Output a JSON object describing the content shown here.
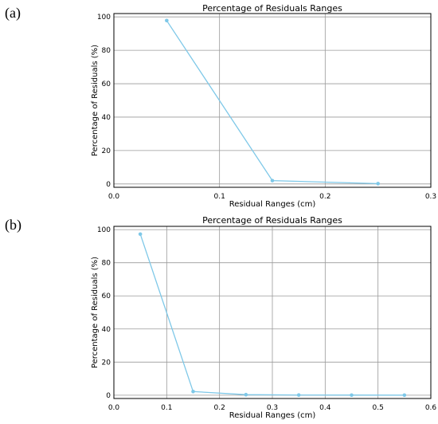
{
  "chart_data": [
    {
      "type": "line",
      "panel_label": "(a)",
      "title": "Percentage of Residuals Ranges",
      "xlabel": "Residual Ranges (cm)",
      "ylabel": "Percentage of Residuals (%)",
      "xlim": [
        0,
        0.3
      ],
      "ylim": [
        -2,
        102
      ],
      "xticks": [
        "0.0",
        "0.1",
        "0.2",
        "0.3"
      ],
      "yticks": [
        "0",
        "20",
        "40",
        "60",
        "80",
        "100"
      ],
      "grid": true,
      "color": "#7ec8e8",
      "series": [
        {
          "x": [
            0.05,
            0.15,
            0.25
          ],
          "y": [
            97.8,
            2.0,
            0.2
          ]
        }
      ]
    },
    {
      "type": "line",
      "panel_label": "(b)",
      "title": "Percentage of Residuals Ranges",
      "xlabel": "Residual Ranges (cm)",
      "ylabel": "Percentage of Residuals (%)",
      "xlim": [
        0,
        0.6
      ],
      "ylim": [
        -2,
        102
      ],
      "xticks": [
        "0.0",
        "0.1",
        "0.2",
        "0.3",
        "0.4",
        "0.5",
        "0.6"
      ],
      "yticks": [
        "0",
        "20",
        "40",
        "60",
        "80",
        "100"
      ],
      "grid": true,
      "color": "#7ec8e8",
      "series": [
        {
          "x": [
            0.05,
            0.15,
            0.25,
            0.35,
            0.45,
            0.55
          ],
          "y": [
            97.3,
            2.2,
            0.3,
            0.1,
            0.05,
            0.02
          ]
        }
      ]
    }
  ]
}
